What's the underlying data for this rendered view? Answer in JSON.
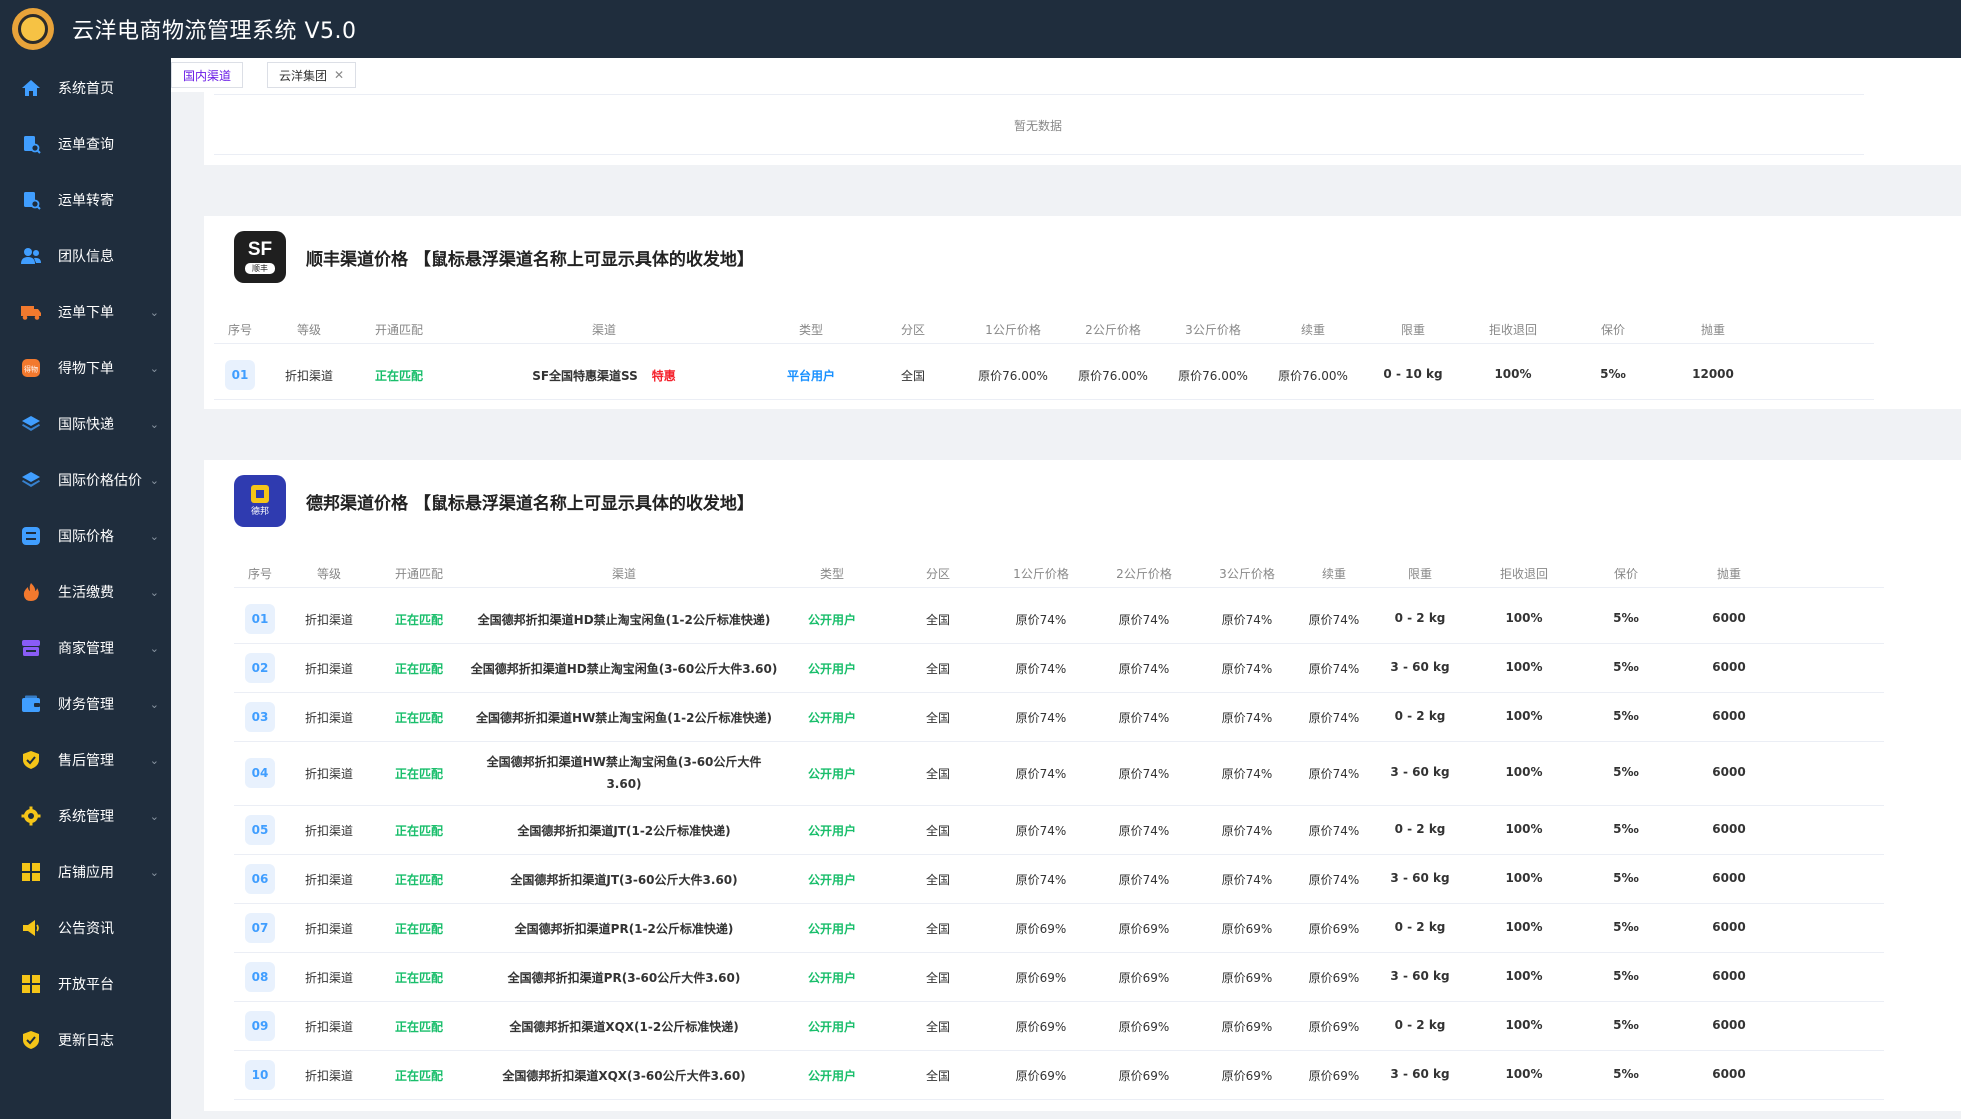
{
  "app": {
    "title": "云洋电商物流管理系统 V5.0"
  },
  "sidebar": {
    "items": [
      {
        "label": "系统首页",
        "icon": "home-icon",
        "color": "#409eff",
        "chevron": false
      },
      {
        "label": "运单查询",
        "icon": "waybill-search-icon",
        "color": "#409eff",
        "chevron": false
      },
      {
        "label": "运单转寄",
        "icon": "waybill-forward-icon",
        "color": "#409eff",
        "chevron": false
      },
      {
        "label": "团队信息",
        "icon": "team-icon",
        "color": "#409eff",
        "chevron": false
      },
      {
        "label": "运单下单",
        "icon": "truck-icon",
        "color": "#f2792e",
        "chevron": true
      },
      {
        "label": "得物下单",
        "icon": "dewu-icon",
        "color": "#f2792e",
        "chevron": true
      },
      {
        "label": "国际快递",
        "icon": "layers-icon",
        "color": "#409eff",
        "chevron": true
      },
      {
        "label": "国际价格估价",
        "icon": "layers-icon",
        "color": "#409eff",
        "chevron": true
      },
      {
        "label": "国际价格",
        "icon": "list-icon",
        "color": "#409eff",
        "chevron": true
      },
      {
        "label": "生活缴费",
        "icon": "fire-icon",
        "color": "#f2792e",
        "chevron": true
      },
      {
        "label": "商家管理",
        "icon": "store-icon",
        "color": "#8a5cf6",
        "chevron": true
      },
      {
        "label": "财务管理",
        "icon": "wallet-icon",
        "color": "#409eff",
        "chevron": true
      },
      {
        "label": "售后管理",
        "icon": "shield-icon",
        "color": "#f5c518",
        "chevron": true
      },
      {
        "label": "系统管理",
        "icon": "gear-icon",
        "color": "#f5c518",
        "chevron": true
      },
      {
        "label": "店铺应用",
        "icon": "grid-icon",
        "color": "#f5c518",
        "chevron": true
      },
      {
        "label": "公告资讯",
        "icon": "megaphone-icon",
        "color": "#f5c518",
        "chevron": false
      },
      {
        "label": "开放平台",
        "icon": "grid-icon",
        "color": "#f5c518",
        "chevron": false
      },
      {
        "label": "更新日志",
        "icon": "shield-icon",
        "color": "#f5c518",
        "chevron": false
      }
    ]
  },
  "tabs": [
    {
      "label": "国内渠道",
      "active": true,
      "closable": false
    },
    {
      "label": "云洋集团",
      "active": false,
      "closable": true
    }
  ],
  "empty_panel": {
    "empty_text": "暂无数据"
  },
  "sf_panel": {
    "logo_text": "SF",
    "logo_sub": "顺丰",
    "title": "顺丰渠道价格 【鼠标悬浮渠道名称上可显示具体的收发地】",
    "headers": [
      "序号",
      "等级",
      "开通匹配",
      "渠道",
      "类型",
      "分区",
      "1公斤价格",
      "2公斤价格",
      "3公斤价格",
      "续重",
      "限重",
      "拒收退回",
      "保价",
      "抛重"
    ],
    "rows": [
      {
        "idx": "01",
        "level": "折扣渠道",
        "match": "正在匹配",
        "channel": "SF全国特惠渠道SS",
        "tag": "特惠",
        "type": "平台用户",
        "zone": "全国",
        "p1": "原价76.00%",
        "p2": "原价76.00%",
        "p3": "原价76.00%",
        "cont": "原价76.00%",
        "limit": "0 - 10 kg",
        "reject": "100%",
        "insure": "5‰",
        "vol": "12000"
      }
    ]
  },
  "db_panel": {
    "logo_sub": "德邦",
    "title": "德邦渠道价格 【鼠标悬浮渠道名称上可显示具体的收发地】",
    "headers": [
      "序号",
      "等级",
      "开通匹配",
      "渠道",
      "类型",
      "分区",
      "1公斤价格",
      "2公斤价格",
      "3公斤价格",
      "续重",
      "限重",
      "拒收退回",
      "保价",
      "抛重"
    ],
    "rows": [
      {
        "idx": "01",
        "level": "折扣渠道",
        "match": "正在匹配",
        "channel": "全国德邦折扣渠道HD禁止淘宝闲鱼(1-2公斤标准快递)",
        "type": "公开用户",
        "zone": "全国",
        "p1": "原价74%",
        "p2": "原价74%",
        "p3": "原价74%",
        "cont": "原价74%",
        "limit": "0 - 2 kg",
        "reject": "100%",
        "insure": "5‰",
        "vol": "6000"
      },
      {
        "idx": "02",
        "level": "折扣渠道",
        "match": "正在匹配",
        "channel": "全国德邦折扣渠道HD禁止淘宝闲鱼(3-60公斤大件3.60)",
        "type": "公开用户",
        "zone": "全国",
        "p1": "原价74%",
        "p2": "原价74%",
        "p3": "原价74%",
        "cont": "原价74%",
        "limit": "3 - 60 kg",
        "reject": "100%",
        "insure": "5‰",
        "vol": "6000"
      },
      {
        "idx": "03",
        "level": "折扣渠道",
        "match": "正在匹配",
        "channel": "全国德邦折扣渠道HW禁止淘宝闲鱼(1-2公斤标准快递)",
        "type": "公开用户",
        "zone": "全国",
        "p1": "原价74%",
        "p2": "原价74%",
        "p3": "原价74%",
        "cont": "原价74%",
        "limit": "0 - 2 kg",
        "reject": "100%",
        "insure": "5‰",
        "vol": "6000"
      },
      {
        "idx": "04",
        "level": "折扣渠道",
        "match": "正在匹配",
        "channel": "全国德邦折扣渠道HW禁止淘宝闲鱼(3-60公斤大件3.60)",
        "type": "公开用户",
        "zone": "全国",
        "p1": "原价74%",
        "p2": "原价74%",
        "p3": "原价74%",
        "cont": "原价74%",
        "limit": "3 - 60 kg",
        "reject": "100%",
        "insure": "5‰",
        "vol": "6000"
      },
      {
        "idx": "05",
        "level": "折扣渠道",
        "match": "正在匹配",
        "channel": "全国德邦折扣渠道JT(1-2公斤标准快递)",
        "type": "公开用户",
        "zone": "全国",
        "p1": "原价74%",
        "p2": "原价74%",
        "p3": "原价74%",
        "cont": "原价74%",
        "limit": "0 - 2 kg",
        "reject": "100%",
        "insure": "5‰",
        "vol": "6000"
      },
      {
        "idx": "06",
        "level": "折扣渠道",
        "match": "正在匹配",
        "channel": "全国德邦折扣渠道JT(3-60公斤大件3.60)",
        "type": "公开用户",
        "zone": "全国",
        "p1": "原价74%",
        "p2": "原价74%",
        "p3": "原价74%",
        "cont": "原价74%",
        "limit": "3 - 60 kg",
        "reject": "100%",
        "insure": "5‰",
        "vol": "6000"
      },
      {
        "idx": "07",
        "level": "折扣渠道",
        "match": "正在匹配",
        "channel": "全国德邦折扣渠道PR(1-2公斤标准快递)",
        "type": "公开用户",
        "zone": "全国",
        "p1": "原价69%",
        "p2": "原价69%",
        "p3": "原价69%",
        "cont": "原价69%",
        "limit": "0 - 2 kg",
        "reject": "100%",
        "insure": "5‰",
        "vol": "6000"
      },
      {
        "idx": "08",
        "level": "折扣渠道",
        "match": "正在匹配",
        "channel": "全国德邦折扣渠道PR(3-60公斤大件3.60)",
        "type": "公开用户",
        "zone": "全国",
        "p1": "原价69%",
        "p2": "原价69%",
        "p3": "原价69%",
        "cont": "原价69%",
        "limit": "3 - 60 kg",
        "reject": "100%",
        "insure": "5‰",
        "vol": "6000"
      },
      {
        "idx": "09",
        "level": "折扣渠道",
        "match": "正在匹配",
        "channel": "全国德邦折扣渠道XQX(1-2公斤标准快递)",
        "type": "公开用户",
        "zone": "全国",
        "p1": "原价69%",
        "p2": "原价69%",
        "p3": "原价69%",
        "cont": "原价69%",
        "limit": "0 - 2 kg",
        "reject": "100%",
        "insure": "5‰",
        "vol": "6000"
      },
      {
        "idx": "10",
        "level": "折扣渠道",
        "match": "正在匹配",
        "channel": "全国德邦折扣渠道XQX(3-60公斤大件3.60)",
        "type": "公开用户",
        "zone": "全国",
        "p1": "原价69%",
        "p2": "原价69%",
        "p3": "原价69%",
        "cont": "原价69%",
        "limit": "3 - 60 kg",
        "reject": "100%",
        "insure": "5‰",
        "vol": "6000"
      }
    ]
  }
}
